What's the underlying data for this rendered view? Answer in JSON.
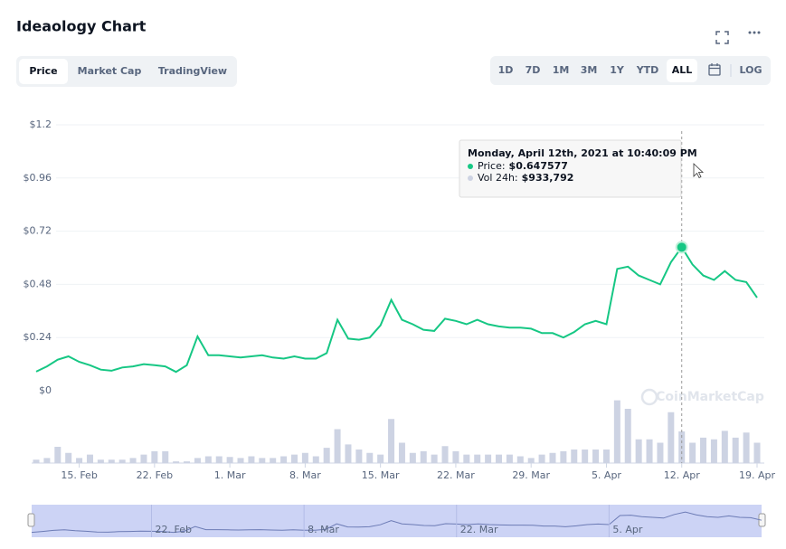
{
  "header": {
    "title": "Ideaology Chart",
    "tabs": [
      "Price",
      "Market Cap",
      "TradingView"
    ],
    "ranges": [
      "1D",
      "7D",
      "1M",
      "3M",
      "1Y",
      "YTD",
      "ALL"
    ],
    "log": "LOG"
  },
  "watermark": "CoinMarketCap",
  "chart_data": {
    "type": "line",
    "categories": [
      null,
      null,
      null,
      null,
      "15. Feb",
      null,
      null,
      null,
      null,
      null,
      null,
      "22. Feb",
      null,
      null,
      null,
      null,
      null,
      null,
      "1. Mar",
      null,
      null,
      null,
      null,
      null,
      null,
      "8. Mar",
      null,
      null,
      null,
      null,
      null,
      null,
      "15. Mar",
      null,
      null,
      null,
      null,
      null,
      null,
      "22. Mar",
      null,
      null,
      null,
      null,
      null,
      null,
      "29. Mar",
      null,
      null,
      null,
      null,
      null,
      null,
      "5. Apr",
      null,
      null,
      null,
      null,
      null,
      null,
      "12. Apr",
      null,
      null,
      null,
      null,
      null,
      null,
      "19. Apr"
    ],
    "series": [
      {
        "color": "#16c784",
        "values": [
          0.086,
          0.11,
          0.14,
          0.155,
          0.13,
          0.115,
          0.095,
          0.09,
          0.105,
          0.11,
          0.12,
          0.115,
          0.11,
          0.085,
          0.115,
          0.245,
          0.16,
          0.16,
          0.155,
          0.15,
          0.155,
          0.16,
          0.15,
          0.145,
          0.155,
          0.145,
          0.145,
          0.17,
          0.32,
          0.235,
          0.23,
          0.24,
          0.295,
          0.41,
          0.32,
          0.3,
          0.275,
          0.27,
          0.325,
          0.315,
          0.3,
          0.32,
          0.3,
          0.29,
          0.285,
          0.285,
          0.28,
          0.26,
          0.26,
          0.24,
          0.265,
          0.3,
          0.315,
          0.3,
          0.55,
          0.56,
          0.52,
          0.5,
          0.48,
          0.58,
          0.647577,
          0.57,
          0.52,
          0.5,
          0.54,
          0.5,
          0.49,
          0.42
        ]
      },
      {
        "type": "bar",
        "axis": "y2",
        "color": "#cdd3e3",
        "values": [
          100000,
          150000,
          480000,
          300000,
          150000,
          250000,
          100000,
          100000,
          100000,
          150000,
          250000,
          350000,
          350000,
          50000,
          50000,
          150000,
          200000,
          200000,
          180000,
          150000,
          200000,
          150000,
          150000,
          200000,
          250000,
          300000,
          200000,
          450000,
          1000000,
          550000,
          400000,
          300000,
          250000,
          1300000,
          600000,
          300000,
          350000,
          250000,
          500000,
          350000,
          250000,
          250000,
          250000,
          250000,
          250000,
          200000,
          150000,
          250000,
          300000,
          350000,
          400000,
          400000,
          400000,
          400000,
          1850000,
          1600000,
          700000,
          700000,
          600000,
          1500000,
          933792,
          600000,
          750000,
          700000,
          950000,
          750000,
          900000,
          600000
        ]
      }
    ],
    "ylim": [
      0,
      1.2
    ],
    "yticks": [
      {
        "value": 0,
        "label": "$0"
      },
      {
        "value": 0.24,
        "label": "$0.24"
      },
      {
        "value": 0.48,
        "label": "$0.48"
      },
      {
        "value": 0.72,
        "label": "$0.72"
      },
      {
        "value": 0.96,
        "label": "$0.96"
      },
      {
        "value": 1.2,
        "label": "$1.2"
      }
    ],
    "y2lim": [
      0,
      2000000
    ],
    "grid": true,
    "tooltip": {
      "title": "Monday, April 12th, 2021 at 10:40:09 PM",
      "items": [
        {
          "name": "Price:",
          "value": "$0.647577"
        },
        {
          "name": "Vol 24h:",
          "value": "$933,792"
        }
      ]
    }
  }
}
